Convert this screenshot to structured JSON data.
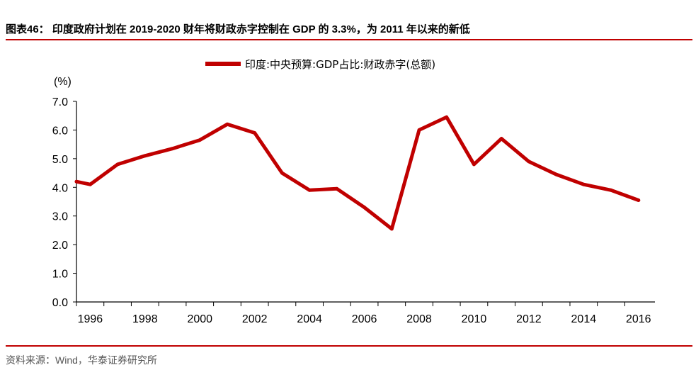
{
  "header": {
    "title": "图表46：  印度政府计划在 2019-2020 财年将财政赤字控制在 GDP 的 3.3%，为 2011 年以来的新低"
  },
  "footer": {
    "source": "资料来源：Wind，华泰证券研究所"
  },
  "colors": {
    "accent": "#c00000",
    "series": "#c00000",
    "axis": "#000000"
  },
  "chart_data": {
    "type": "line",
    "title": "",
    "xlabel": "",
    "ylabel": "(%)",
    "ylim": [
      0,
      7
    ],
    "yticks": [
      "0.0",
      "1.0",
      "2.0",
      "3.0",
      "4.0",
      "5.0",
      "6.0",
      "7.0"
    ],
    "xlim": [
      1996,
      2016
    ],
    "xticks": [
      "1996",
      "1998",
      "2000",
      "2002",
      "2004",
      "2006",
      "2008",
      "2010",
      "2012",
      "2014",
      "2016"
    ],
    "grid": false,
    "legend_position": "top-center",
    "series": [
      {
        "name": "印度:中央预算:GDP占比:财政赤字(总额)",
        "color": "#c00000",
        "x": [
          1995.5,
          1996,
          1997,
          1998,
          1999,
          2000,
          2001,
          2002,
          2003,
          2004,
          2005,
          2006,
          2007,
          2008,
          2009,
          2010,
          2011,
          2012,
          2013,
          2014,
          2015,
          2016
        ],
        "y": [
          4.2,
          4.1,
          4.8,
          5.1,
          5.35,
          5.65,
          6.2,
          5.9,
          4.5,
          3.9,
          3.95,
          3.3,
          2.55,
          6.0,
          6.45,
          4.8,
          5.7,
          4.9,
          4.45,
          4.1,
          3.9,
          3.55
        ]
      }
    ]
  }
}
